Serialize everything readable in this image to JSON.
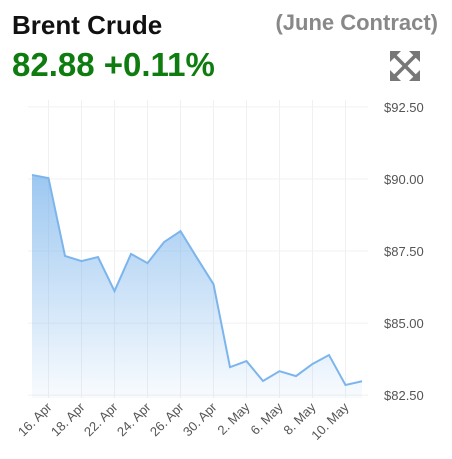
{
  "chart_data": {
    "type": "area",
    "title": "Brent Crude",
    "subtitle": "(June Contract)",
    "price": "82.88",
    "change": "+0.11%",
    "categories": [
      null,
      "16. Apr",
      null,
      "18. Apr",
      null,
      "22. Apr",
      null,
      "24. Apr",
      null,
      "26. Apr",
      null,
      "30. Apr",
      null,
      "2. May",
      null,
      "6. May",
      null,
      "8. May",
      null,
      "10. May",
      null
    ],
    "values": [
      90.14,
      90.03,
      87.33,
      87.15,
      87.29,
      86.11,
      87.4,
      87.08,
      87.81,
      88.19,
      87.26,
      86.35,
      83.47,
      83.68,
      82.99,
      83.33,
      83.16,
      83.58,
      83.89,
      82.85,
      82.98
    ],
    "color": "#7cb5ec",
    "ylim": [
      82.4,
      92.74
    ],
    "yticks": [
      {
        "value": 82.5,
        "label": "$82.50"
      },
      {
        "value": 85,
        "label": "$85.00"
      },
      {
        "value": 87.5,
        "label": "$87.50"
      },
      {
        "value": 90,
        "label": "$90.00"
      },
      {
        "value": 92.5,
        "label": "$92.50"
      }
    ],
    "grid": true
  }
}
